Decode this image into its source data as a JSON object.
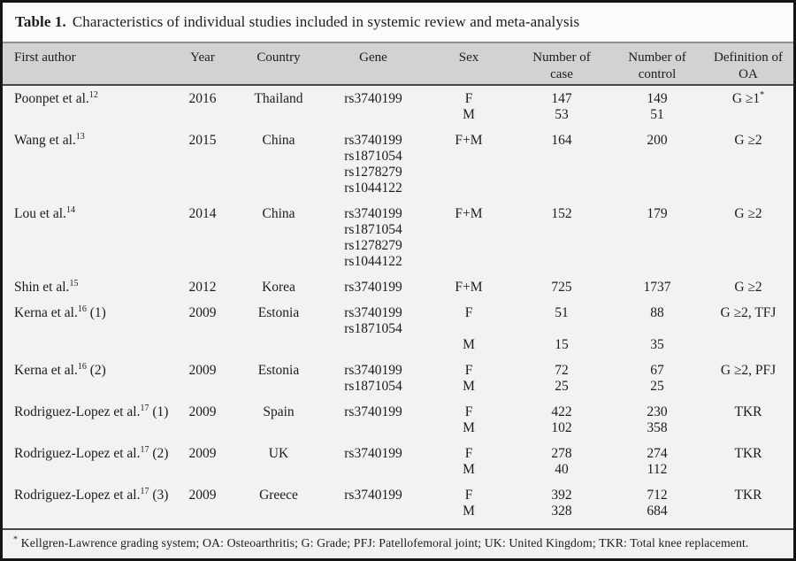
{
  "title": {
    "prefix": "Table 1.",
    "text": "Characteristics of individual studies included in systemic review and meta-analysis"
  },
  "colors": {
    "border": "#141414",
    "title_bg": "#fbfbfb",
    "header_bg": "#d2d2d2",
    "body_bg": "#f2f2f2",
    "rule_dark": "#474747",
    "rule_light": "#8e8e8e",
    "ink": "#1c1c1c"
  },
  "table": {
    "columns": [
      {
        "key": "author",
        "label_lines": [
          "First author"
        ]
      },
      {
        "key": "year",
        "label_lines": [
          "Year"
        ]
      },
      {
        "key": "country",
        "label_lines": [
          "Country"
        ]
      },
      {
        "key": "gene",
        "label_lines": [
          "Gene"
        ]
      },
      {
        "key": "sex",
        "label_lines": [
          "Sex"
        ]
      },
      {
        "key": "case",
        "label_lines": [
          "Number of",
          "case"
        ]
      },
      {
        "key": "control",
        "label_lines": [
          "Number of",
          "control"
        ]
      },
      {
        "key": "oa",
        "label_lines": [
          "Definition of",
          "OA"
        ]
      }
    ],
    "rows": [
      {
        "author": {
          "text": "Poonpet et al.",
          "sup": "12",
          "suffix": ""
        },
        "year": "2016",
        "country": "Thailand",
        "gene": [
          "rs3740199"
        ],
        "sex": [
          "F",
          "M"
        ],
        "case": [
          "147",
          "53"
        ],
        "control": [
          "149",
          "51"
        ],
        "oa": {
          "text": "G ≥1",
          "sup": "*"
        }
      },
      {
        "author": {
          "text": "Wang et al.",
          "sup": "13",
          "suffix": ""
        },
        "year": "2015",
        "country": "China",
        "gene": [
          "rs3740199",
          "rs1871054",
          "rs1278279",
          "rs1044122"
        ],
        "sex": [
          "F+M"
        ],
        "case": [
          "164"
        ],
        "control": [
          "200"
        ],
        "oa": {
          "text": "G ≥2",
          "sup": ""
        }
      },
      {
        "author": {
          "text": "Lou et al.",
          "sup": "14",
          "suffix": ""
        },
        "year": "2014",
        "country": "China",
        "gene": [
          "rs3740199",
          "rs1871054",
          "rs1278279",
          "rs1044122"
        ],
        "sex": [
          "F+M"
        ],
        "case": [
          "152"
        ],
        "control": [
          "179"
        ],
        "oa": {
          "text": "G ≥2",
          "sup": ""
        }
      },
      {
        "author": {
          "text": "Shin et al.",
          "sup": "15",
          "suffix": ""
        },
        "year": "2012",
        "country": "Korea",
        "gene": [
          "rs3740199"
        ],
        "sex": [
          "F+M"
        ],
        "case": [
          "725"
        ],
        "control": [
          "1737"
        ],
        "oa": {
          "text": "G ≥2",
          "sup": ""
        }
      },
      {
        "author": {
          "text": "Kerna et al.",
          "sup": "16",
          "suffix": " (1)"
        },
        "year": "2009",
        "country": "Estonia",
        "gene": [
          "rs3740199",
          "rs1871054"
        ],
        "sex": [
          "F",
          "",
          "M"
        ],
        "case": [
          "51",
          "",
          "15"
        ],
        "control": [
          "88",
          "",
          "35"
        ],
        "oa": {
          "text": "G ≥2, TFJ",
          "sup": ""
        }
      },
      {
        "author": {
          "text": "Kerna et al.",
          "sup": "16",
          "suffix": " (2)"
        },
        "year": "2009",
        "country": "Estonia",
        "gene": [
          "rs3740199",
          "rs1871054"
        ],
        "sex": [
          "F",
          "M"
        ],
        "case": [
          "72",
          "25"
        ],
        "control": [
          "67",
          "25"
        ],
        "oa": {
          "text": "G ≥2, PFJ",
          "sup": ""
        }
      },
      {
        "author": {
          "text": "Rodriguez-Lopez et al.",
          "sup": "17",
          "suffix": " (1)"
        },
        "year": "2009",
        "country": "Spain",
        "gene": [
          "rs3740199"
        ],
        "sex": [
          "F",
          "M"
        ],
        "case": [
          "422",
          "102"
        ],
        "control": [
          "230",
          "358"
        ],
        "oa": {
          "text": "TKR",
          "sup": ""
        }
      },
      {
        "author": {
          "text": "Rodriguez-Lopez et al.",
          "sup": "17",
          "suffix": " (2)"
        },
        "year": "2009",
        "country": "UK",
        "gene": [
          "rs3740199"
        ],
        "sex": [
          "F",
          "M"
        ],
        "case": [
          "278",
          "40"
        ],
        "control": [
          "274",
          "112"
        ],
        "oa": {
          "text": "TKR",
          "sup": ""
        }
      },
      {
        "author": {
          "text": "Rodriguez-Lopez et al.",
          "sup": "17",
          "suffix": " (3)"
        },
        "year": "2009",
        "country": "Greece",
        "gene": [
          "rs3740199"
        ],
        "sex": [
          "F",
          "M"
        ],
        "case": [
          "392",
          "328"
        ],
        "control": [
          "712",
          "684"
        ],
        "oa": {
          "text": "TKR",
          "sup": ""
        }
      }
    ]
  },
  "footnote": {
    "sup": "*",
    "text": "Kellgren-Lawrence grading system; OA: Osteoarthritis; G: Grade; PFJ: Patellofemoral joint; UK: United Kingdom; TKR: Total knee replacement."
  }
}
